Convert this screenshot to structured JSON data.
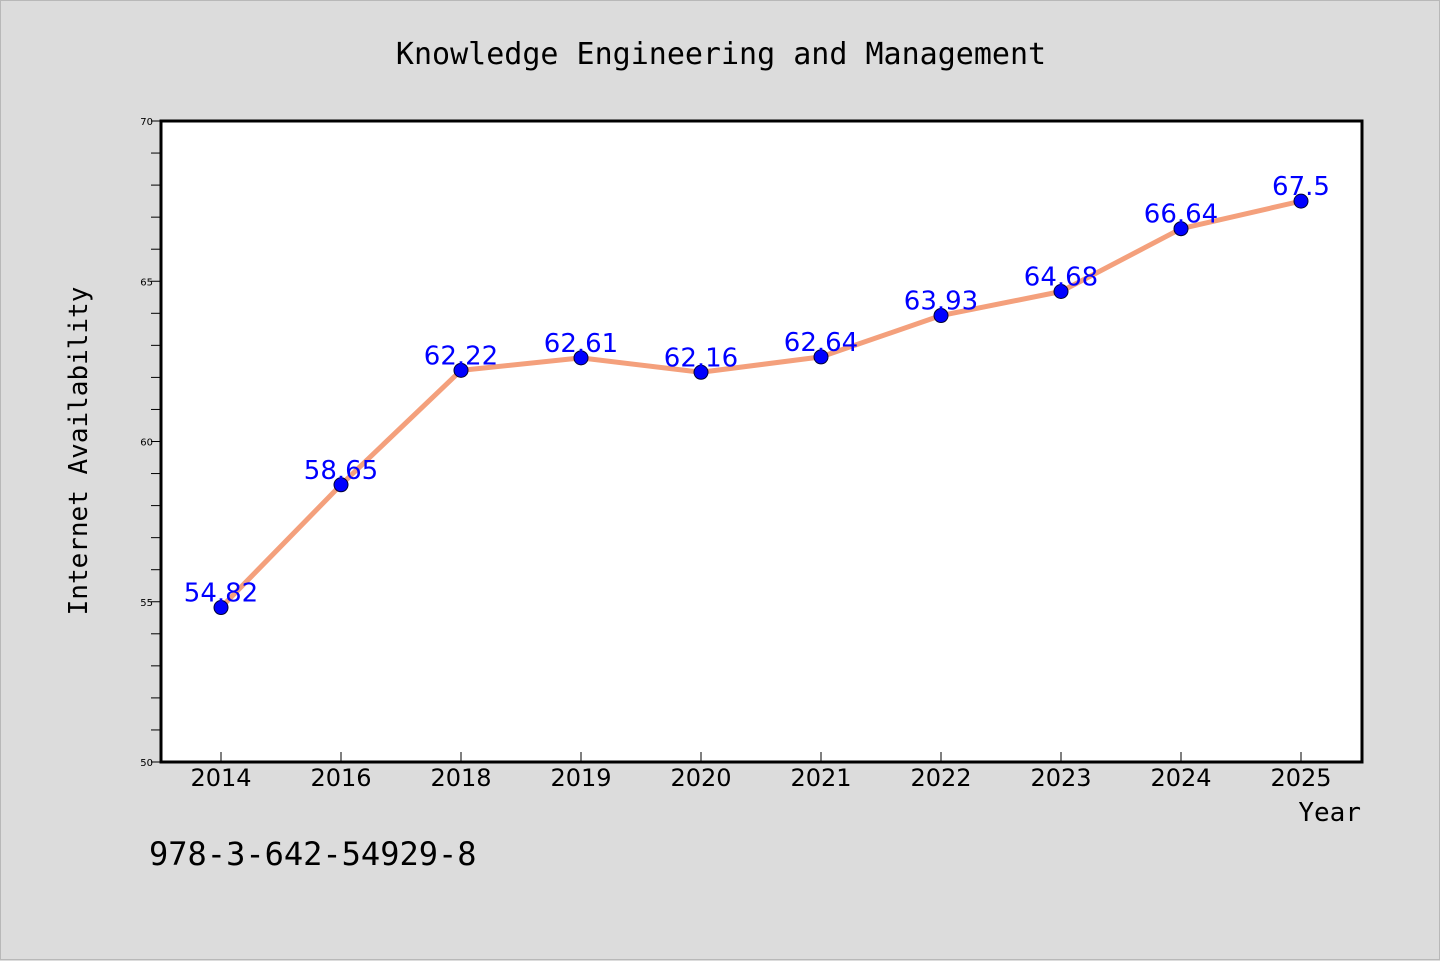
{
  "colors": {
    "background": "#dcdcdc",
    "plot_background": "#ffffff",
    "line": "#f4a07c",
    "marker": "#0000ff",
    "data_label": "#0000ff",
    "text": "#000000"
  },
  "footer": {
    "isbn": "978-3-642-54929-8"
  },
  "chart_data": {
    "type": "line",
    "title": "Knowledge Engineering and Management",
    "xlabel": "Year",
    "ylabel": "Internet Availability",
    "categories": [
      "2014",
      "2016",
      "2018",
      "2019",
      "2020",
      "2021",
      "2022",
      "2023",
      "2024",
      "2025"
    ],
    "series": [
      {
        "values": [
          54.82,
          58.65,
          62.22,
          62.61,
          62.16,
          62.64,
          63.93,
          64.68,
          66.64,
          67.5
        ],
        "labels": [
          "54.82",
          "58.65",
          "62.22",
          "62.61",
          "62.16",
          "62.64",
          "63.93",
          "64.68",
          "66.64",
          "67.5"
        ]
      }
    ],
    "ylim": [
      50,
      70
    ],
    "y_major_ticks": [
      50,
      55,
      60,
      65,
      70
    ],
    "y_minor_step": 1,
    "grid": false,
    "legend": "none",
    "markers": "filled-circle"
  }
}
